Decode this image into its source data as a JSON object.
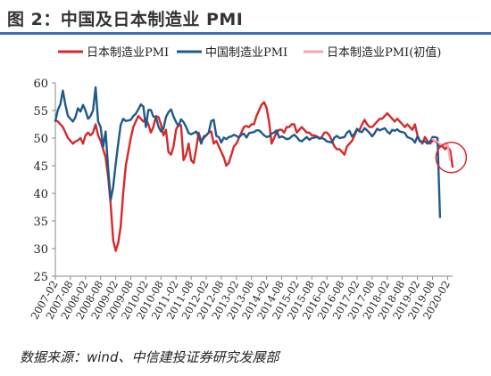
{
  "header": {
    "title": "图 2：中国及日本制造业 PMI"
  },
  "footer": {
    "source": "数据来源：wind、中信建投证券研究发展部"
  },
  "colors": {
    "japan": "#d7282a",
    "china": "#1f5a8c",
    "japan_prelim": "#f4a7b0",
    "circle": "#d7282a",
    "axis": "#888888"
  },
  "chart_data": {
    "type": "line",
    "title": "",
    "xlabel": "",
    "ylabel": "",
    "ylim": [
      25,
      60
    ],
    "yticks": [
      25,
      30,
      35,
      40,
      45,
      50,
      55,
      60
    ],
    "xticks": [
      "2007-02",
      "2007-08",
      "2008-02",
      "2008-08",
      "2009-02",
      "2009-08",
      "2010-02",
      "2010-08",
      "2011-02",
      "2011-08",
      "2012-02",
      "2012-08",
      "2013-02",
      "2013-08",
      "2014-02",
      "2014-08",
      "2015-02",
      "2015-08",
      "2016-02",
      "2016-08",
      "2017-02",
      "2017-08",
      "2018-02",
      "2018-08",
      "2019-02",
      "2019-08",
      "2020-02"
    ],
    "grid": false,
    "legend_position": "top",
    "x_start": "2007-02",
    "series": [
      {
        "name": "日本制造业PMI",
        "color": "#d7282a",
        "values": [
          53.2,
          53.0,
          52.5,
          52.0,
          51.0,
          50.0,
          49.5,
          49.0,
          49.4,
          49.6,
          50.0,
          49.0,
          50.5,
          51.0,
          50.5,
          51.0,
          52.5,
          50.5,
          49.5,
          48.0,
          46.5,
          43.0,
          38.0,
          31.5,
          29.6,
          31.0,
          34.0,
          40.0,
          45.0,
          47.5,
          50.0,
          52.0,
          53.0,
          54.0,
          53.5,
          53.0,
          53.5,
          52.5,
          51.0,
          52.0,
          54.0,
          53.8,
          52.5,
          50.5,
          51.5,
          47.5,
          47.0,
          48.5,
          51.5,
          52.5,
          52.3,
          46.0,
          47.0,
          49.0,
          46.0,
          45.5,
          48.0,
          51.0,
          49.5,
          50.0,
          50.5,
          51.0,
          51.2,
          49.0,
          49.5,
          48.5,
          47.5,
          46.5,
          45.0,
          45.5,
          47.0,
          48.5,
          49.0,
          50.0,
          51.0,
          52.0,
          52.2,
          52.0,
          52.5,
          52.5,
          54.0,
          55.0,
          56.0,
          56.5,
          55.5,
          53.0,
          49.0,
          50.0,
          51.0,
          51.5,
          51.5,
          51.0,
          52.0,
          52.0,
          52.5,
          52.5,
          51.0,
          51.5,
          52.0,
          51.5,
          51.0,
          51.0,
          50.5,
          50.5,
          50.3,
          50.0,
          50.2,
          51.0,
          51.0,
          50.5,
          49.5,
          48.5,
          48.0,
          48.0,
          47.5,
          47.0,
          48.5,
          49.0,
          49.5,
          50.5,
          51.5,
          51.5,
          52.5,
          53.3,
          52.5,
          52.0,
          52.0,
          52.5,
          53.0,
          53.5,
          53.5,
          54.0,
          54.5,
          54.0,
          53.5,
          53.0,
          53.5,
          53.0,
          52.5,
          52.0,
          52.5,
          52.0,
          51.5,
          52.5,
          50.5,
          49.5,
          49.0,
          50.2,
          49.5,
          49.0,
          49.5,
          49.5,
          49.0,
          48.5,
          48.5,
          48.0,
          48.4,
          47.8,
          44.8
        ]
      },
      {
        "name": "中国制造业PMI",
        "color": "#1f5a8c",
        "values": [
          53.1,
          55.1,
          56.1,
          58.6,
          56.0,
          54.0,
          53.5,
          53.0,
          53.8,
          55.4,
          54.8,
          56.0,
          55.0,
          53.5,
          54.0,
          55.0,
          59.2,
          53.0,
          52.0,
          48.4,
          51.2,
          44.6,
          38.8,
          41.2,
          45.3,
          49.0,
          52.4,
          53.5,
          53.1,
          53.2,
          53.3,
          54.0,
          54.4,
          55.2,
          56.1,
          55.7,
          52.0,
          55.1,
          55.1,
          53.9,
          53.8,
          52.1,
          51.2,
          51.7,
          53.8,
          54.7,
          55.2,
          53.9,
          52.9,
          52.2,
          53.4,
          52.9,
          52.0,
          50.9,
          50.7,
          50.9,
          51.2,
          50.4,
          49.0,
          50.3,
          50.5,
          51.0,
          53.1,
          53.3,
          50.4,
          50.2,
          49.2,
          50.1,
          49.8,
          50.2,
          50.3,
          50.6,
          50.4,
          50.1,
          50.6,
          50.8,
          50.1,
          50.9,
          51.0,
          51.1,
          51.4,
          51.4,
          51.0,
          50.5,
          50.2,
          50.3,
          50.8,
          51.0,
          51.4,
          50.1,
          50.3,
          50.1,
          49.8,
          49.9,
          50.3,
          50.6,
          50.2,
          49.6,
          49.4,
          49.8,
          50.2,
          49.7,
          50.0,
          50.1,
          50.2,
          49.9,
          50.0,
          49.8,
          49.4,
          49.3,
          49.2,
          50.1,
          50.4,
          50.0,
          50.1,
          50.2,
          51.0,
          51.3,
          50.3,
          50.8,
          51.7,
          51.2,
          51.1,
          51.8,
          51.4,
          50.9,
          50.3,
          50.9,
          51.7,
          51.4,
          51.6,
          51.8,
          51.2,
          50.8,
          51.5,
          51.3,
          51.6,
          51.2,
          51.1,
          50.9,
          50.2,
          50.0,
          49.8,
          49.2,
          50.3,
          49.4,
          49.4,
          49.4,
          49.0,
          49.3,
          50.2,
          50.2,
          50.0,
          35.7
        ]
      },
      {
        "name": "日本制造业PMI(初值)",
        "color": "#f4a7b0",
        "values": [
          null,
          null,
          null,
          null,
          null,
          null,
          null,
          null,
          null,
          null,
          null,
          null,
          null,
          null,
          null,
          null,
          null,
          null,
          null,
          null,
          null,
          null,
          null,
          null,
          null,
          null,
          null,
          null,
          null,
          null,
          null,
          null,
          null,
          null,
          null,
          null,
          null,
          null,
          null,
          null,
          null,
          null,
          null,
          null,
          null,
          null,
          null,
          null,
          null,
          null,
          null,
          null,
          null,
          null,
          null,
          null,
          null,
          null,
          null,
          null,
          null,
          null,
          null,
          null,
          null,
          null,
          null,
          null,
          null,
          null,
          null,
          null,
          null,
          null,
          null,
          null,
          null,
          null,
          null,
          null,
          null,
          null,
          null,
          null,
          null,
          null,
          null,
          null,
          null,
          null,
          null,
          null,
          null,
          null,
          null,
          null,
          null,
          null,
          null,
          null,
          null,
          null,
          null,
          null,
          null,
          null,
          null,
          null,
          null,
          null,
          null,
          null,
          null,
          null,
          null,
          null,
          null,
          null,
          null,
          null,
          null,
          null,
          null,
          null,
          null,
          null,
          null,
          null,
          null,
          null,
          null,
          null,
          null,
          null,
          null,
          null,
          null,
          null,
          null,
          null,
          null,
          null,
          null,
          null,
          null,
          null,
          null,
          null,
          null,
          null,
          49.8,
          49.5,
          49.3,
          48.9,
          48.8,
          48.6,
          48.9,
          46.1
        ]
      }
    ],
    "annotations": [
      {
        "type": "circle",
        "x": "2020-02",
        "y": 46.5
      }
    ]
  }
}
